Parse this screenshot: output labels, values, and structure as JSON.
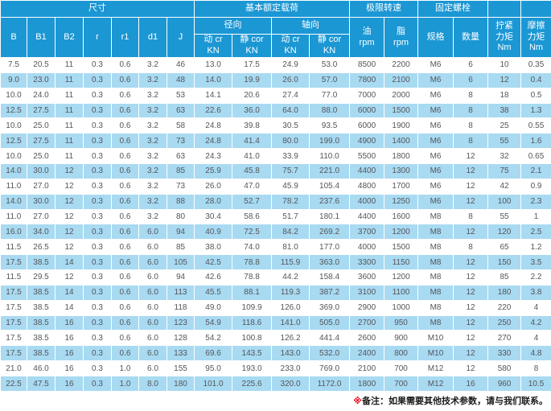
{
  "table": {
    "header": {
      "size": "尺寸",
      "load": "基本额定载荷",
      "speed": "极限转速",
      "bolt": "固定螺栓",
      "radial": "径向",
      "axial": "轴向",
      "b": "B",
      "b1": "B1",
      "b2": "B2",
      "r": "r",
      "r1": "r1",
      "d1": "d1",
      "j": "J",
      "dyn_cr": "动 cr\nKN",
      "stat_cor": "静 cor\nKN",
      "oil": "油\nrpm",
      "grease": "脂\nrpm",
      "spec": "规格",
      "qty": "数量",
      "tighten": "拧紧\n力矩\nNm",
      "friction": "摩擦\n力矩\nNm"
    },
    "rows": [
      [
        "7.5",
        "20.5",
        "11",
        "0.3",
        "0.6",
        "3.2",
        "46",
        "13.0",
        "17.5",
        "24.9",
        "53.0",
        "8500",
        "2200",
        "M6",
        "6",
        "10",
        "0.35"
      ],
      [
        "9.0",
        "23.0",
        "11",
        "0.3",
        "0.6",
        "3.2",
        "48",
        "14.0",
        "19.9",
        "26.0",
        "57.0",
        "7800",
        "2100",
        "M6",
        "6",
        "12",
        "0.4"
      ],
      [
        "10.0",
        "24.0",
        "11",
        "0.3",
        "0.6",
        "3.2",
        "53",
        "14.1",
        "20.6",
        "27.4",
        "77.0",
        "7000",
        "2000",
        "M6",
        "8",
        "18",
        "0.5"
      ],
      [
        "12.5",
        "27.5",
        "11",
        "0.3",
        "0.6",
        "3.2",
        "63",
        "22.6",
        "36.0",
        "64.0",
        "88.0",
        "6000",
        "1500",
        "M6",
        "8",
        "38",
        "1.3"
      ],
      [
        "10.0",
        "25.0",
        "11",
        "0.3",
        "0.6",
        "3.2",
        "58",
        "24.8",
        "39.8",
        "30.5",
        "93.5",
        "6000",
        "1900",
        "M6",
        "8",
        "25",
        "0.55"
      ],
      [
        "12.5",
        "27.5",
        "11",
        "0.3",
        "0.6",
        "3.2",
        "73",
        "24.8",
        "41.4",
        "80.0",
        "199.0",
        "4900",
        "1400",
        "M6",
        "8",
        "55",
        "1.6"
      ],
      [
        "10.0",
        "25.0",
        "11",
        "0.3",
        "0.6",
        "3.2",
        "63",
        "24.3",
        "41.0",
        "33.9",
        "110.0",
        "5500",
        "1800",
        "M6",
        "12",
        "32",
        "0.65"
      ],
      [
        "14.0",
        "30.0",
        "12",
        "0.3",
        "0.6",
        "3.2",
        "85",
        "25.9",
        "45.8",
        "75.7",
        "221.0",
        "4400",
        "1300",
        "M6",
        "12",
        "75",
        "2.1"
      ],
      [
        "11.0",
        "27.0",
        "12",
        "0.3",
        "0.6",
        "3.2",
        "73",
        "26.0",
        "47.0",
        "45.9",
        "105.4",
        "4800",
        "1700",
        "M6",
        "12",
        "42",
        "0.9"
      ],
      [
        "14.0",
        "30.0",
        "12",
        "0.3",
        "0.6",
        "3.2",
        "88",
        "28.0",
        "52.7",
        "78.2",
        "237.6",
        "4000",
        "1250",
        "M6",
        "12",
        "100",
        "2.3"
      ],
      [
        "11.0",
        "27.0",
        "12",
        "0.3",
        "0.6",
        "3.2",
        "80",
        "30.4",
        "58.6",
        "51.7",
        "180.1",
        "4400",
        "1600",
        "M8",
        "8",
        "55",
        "1"
      ],
      [
        "16.0",
        "34.0",
        "12",
        "0.3",
        "0.6",
        "6.0",
        "94",
        "40.9",
        "72.5",
        "84.2",
        "269.2",
        "3700",
        "1200",
        "M8",
        "12",
        "120",
        "2.5"
      ],
      [
        "11.5",
        "26.5",
        "12",
        "0.3",
        "0.6",
        "6.0",
        "85",
        "38.0",
        "74.0",
        "81.0",
        "177.0",
        "4000",
        "1500",
        "M8",
        "8",
        "65",
        "1.2"
      ],
      [
        "17.5",
        "38.5",
        "14",
        "0.3",
        "0.6",
        "6.0",
        "105",
        "42.5",
        "78.8",
        "115.9",
        "363.0",
        "3300",
        "1150",
        "M8",
        "12",
        "150",
        "3.5"
      ],
      [
        "11.5",
        "29.5",
        "12",
        "0.3",
        "0.6",
        "6.0",
        "94",
        "42.6",
        "78.8",
        "44.2",
        "158.4",
        "3600",
        "1200",
        "M8",
        "12",
        "85",
        "2.2"
      ],
      [
        "17.5",
        "38.5",
        "14",
        "0.3",
        "0.6",
        "6.0",
        "113",
        "45.5",
        "88.1",
        "119.3",
        "387.2",
        "3100",
        "1100",
        "M8",
        "12",
        "180",
        "3.8"
      ],
      [
        "17.5",
        "38.5",
        "14",
        "0.3",
        "0.6",
        "6.0",
        "118",
        "49.0",
        "109.9",
        "126.0",
        "369.0",
        "2900",
        "1000",
        "M8",
        "12",
        "220",
        "4"
      ],
      [
        "17.5",
        "38.5",
        "16",
        "0.3",
        "0.6",
        "6.0",
        "123",
        "54.9",
        "118.6",
        "141.0",
        "505.0",
        "2700",
        "950",
        "M8",
        "12",
        "250",
        "4.2"
      ],
      [
        "17.5",
        "38.5",
        "16",
        "0.3",
        "0.6",
        "6.0",
        "128",
        "54.2",
        "100.8",
        "126.2",
        "441.4",
        "2600",
        "900",
        "M10",
        "12",
        "270",
        "4"
      ],
      [
        "17.5",
        "38.5",
        "16",
        "0.3",
        "0.6",
        "6.0",
        "133",
        "69.6",
        "143.5",
        "143.0",
        "532.0",
        "2400",
        "800",
        "M10",
        "12",
        "330",
        "4.8"
      ],
      [
        "21.0",
        "46.0",
        "16",
        "0.3",
        "1.0",
        "6.0",
        "155",
        "95.0",
        "193.0",
        "233.0",
        "769.0",
        "2100",
        "700",
        "M12",
        "12",
        "580",
        "8"
      ],
      [
        "22.5",
        "47.5",
        "16",
        "0.3",
        "1.0",
        "8.0",
        "180",
        "101.0",
        "225.6",
        "320.0",
        "1172.0",
        "1800",
        "700",
        "M12",
        "16",
        "960",
        "10.5"
      ]
    ]
  },
  "note": {
    "mark": "※",
    "text": "备注：如果需要其他技术参数，请与我们联系。"
  },
  "colors": {
    "header_blue": "#1b97d4",
    "row_alt_blue": "#a8daf2",
    "note_mark_red": "#e60012"
  }
}
